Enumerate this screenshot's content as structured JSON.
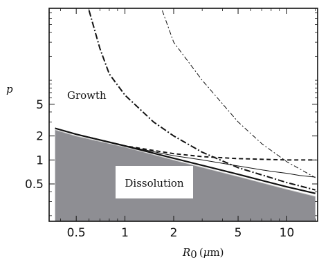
{
  "chart_data": {
    "type": "line",
    "x_scale": "log",
    "y_scale": "log",
    "xlim": [
      0.34,
      15.5
    ],
    "ylim": [
      0.17,
      80
    ],
    "xlabel": "R",
    "xlabel_subscript": "0",
    "xlabel_unit_open": "(",
    "xlabel_unit_mu": "μ",
    "xlabel_unit_rest": "m)",
    "ylabel": "p",
    "x_ticks": [
      {
        "value": 0.5,
        "label": "0.5"
      },
      {
        "value": 1,
        "label": "1"
      },
      {
        "value": 2,
        "label": "2"
      },
      {
        "value": 5,
        "label": "5"
      },
      {
        "value": 10,
        "label": "10"
      }
    ],
    "y_ticks": [
      {
        "value": 0.5,
        "label": "0.5"
      },
      {
        "value": 1,
        "label": "1"
      },
      {
        "value": 2,
        "label": "2"
      },
      {
        "value": 5,
        "label": "5"
      }
    ],
    "grid": false,
    "annotations": {
      "growth": "Growth",
      "dissolution": "Dissolution"
    },
    "shaded_region": {
      "name": "Dissolution",
      "color": "#8e8e93",
      "x": [
        0.37,
        0.5,
        1,
        2,
        5,
        10,
        15
      ],
      "y": [
        2.4,
        2.0,
        1.45,
        1.0,
        0.62,
        0.43,
        0.35
      ]
    },
    "series": [
      {
        "style": "solid-thick",
        "x": [
          0.37,
          0.5,
          1,
          2,
          5,
          10,
          15
        ],
        "y": [
          2.5,
          2.1,
          1.5,
          1.05,
          0.66,
          0.46,
          0.38
        ]
      },
      {
        "style": "solid-thin",
        "x": [
          0.37,
          0.5,
          1,
          2,
          3,
          5,
          8,
          10,
          12,
          15
        ],
        "y": [
          2.5,
          2.1,
          1.5,
          1.13,
          1.0,
          0.84,
          0.72,
          0.68,
          0.64,
          0.61
        ]
      },
      {
        "style": "dashed",
        "x": [
          0.37,
          0.5,
          1,
          2,
          3,
          5,
          10,
          15
        ],
        "y": [
          2.5,
          2.1,
          1.5,
          1.2,
          1.1,
          1.04,
          1.0,
          1.0
        ]
      },
      {
        "style": "dashdot-thick",
        "x": [
          0.6,
          0.7,
          0.8,
          1,
          1.5,
          2,
          3,
          5,
          10,
          15
        ],
        "y": [
          75,
          25,
          12,
          6.5,
          3.0,
          2.0,
          1.25,
          0.8,
          0.52,
          0.42
        ]
      },
      {
        "style": "dashdot-thin",
        "x": [
          1.7,
          2,
          3,
          5,
          7,
          10,
          15
        ],
        "y": [
          75,
          30,
          10,
          3.0,
          1.6,
          0.95,
          0.6
        ]
      }
    ]
  }
}
